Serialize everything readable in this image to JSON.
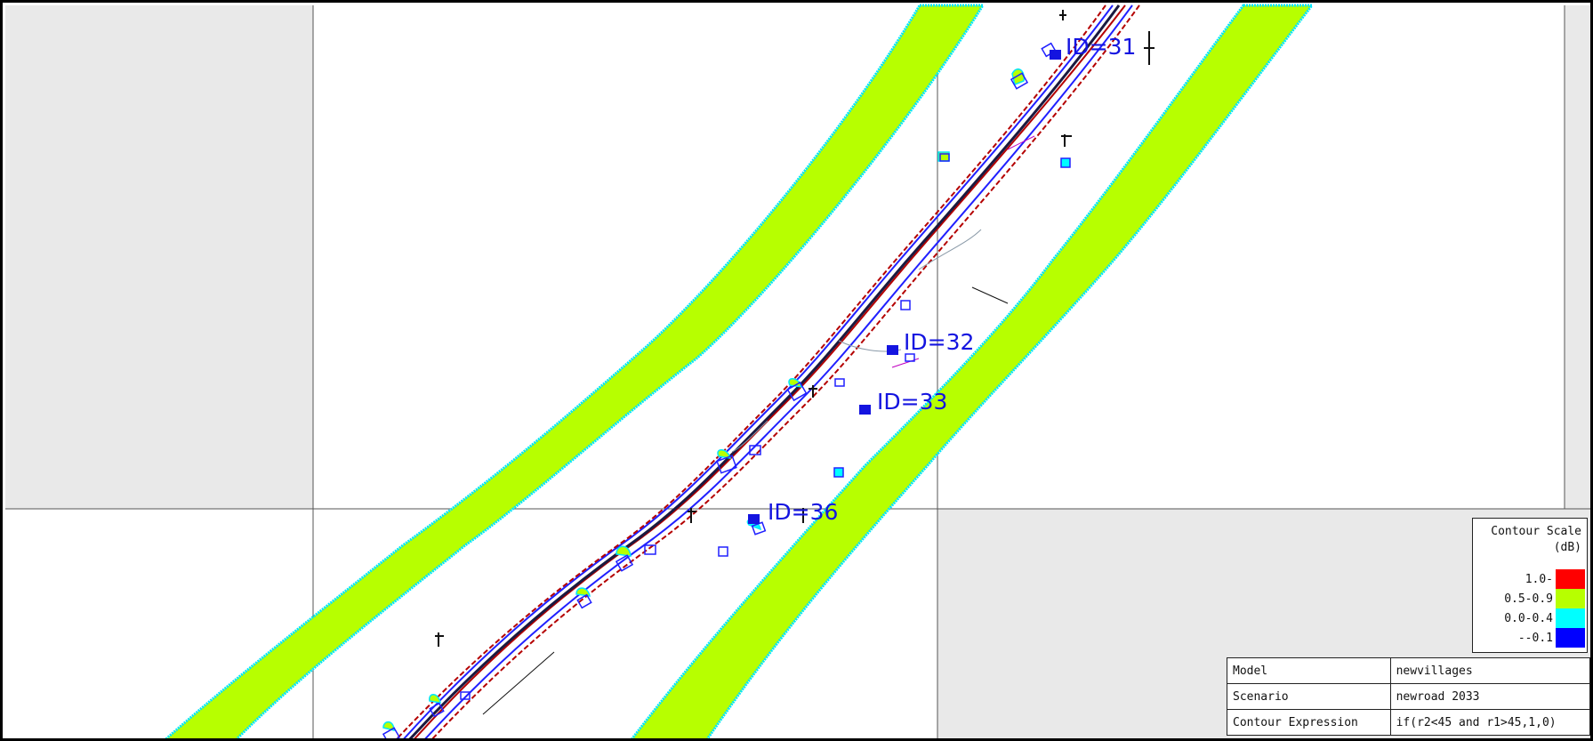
{
  "receptors": [
    {
      "id_label": "ID=31"
    },
    {
      "id_label": "ID=32"
    },
    {
      "id_label": "ID=33"
    },
    {
      "id_label": "ID=36"
    }
  ],
  "legend": {
    "title_line1": "Contour Scale",
    "title_line2": "(dB)",
    "items": [
      {
        "label": "1.0-",
        "color": "#ff0000"
      },
      {
        "label": "0.5-0.9",
        "color": "#b7ff00"
      },
      {
        "label": "0.0-0.4",
        "color": "#00ffff"
      },
      {
        "label": "--0.1",
        "color": "#0000ff"
      }
    ]
  },
  "info": {
    "rows": [
      {
        "key": "Model",
        "value": "newvillages"
      },
      {
        "key": "Scenario",
        "value": "newroad 2033"
      },
      {
        "key": "Contour Expression",
        "value": "if(r2<45 and r1>45,1,0)"
      }
    ]
  },
  "colors": {
    "contour_band": "#b7ff00",
    "contour_edge": "#00ffff",
    "outside_area": "#e9e9e9",
    "receptor": "#1414e0",
    "road_red": "#b40000",
    "road_blue": "#2020ff"
  }
}
